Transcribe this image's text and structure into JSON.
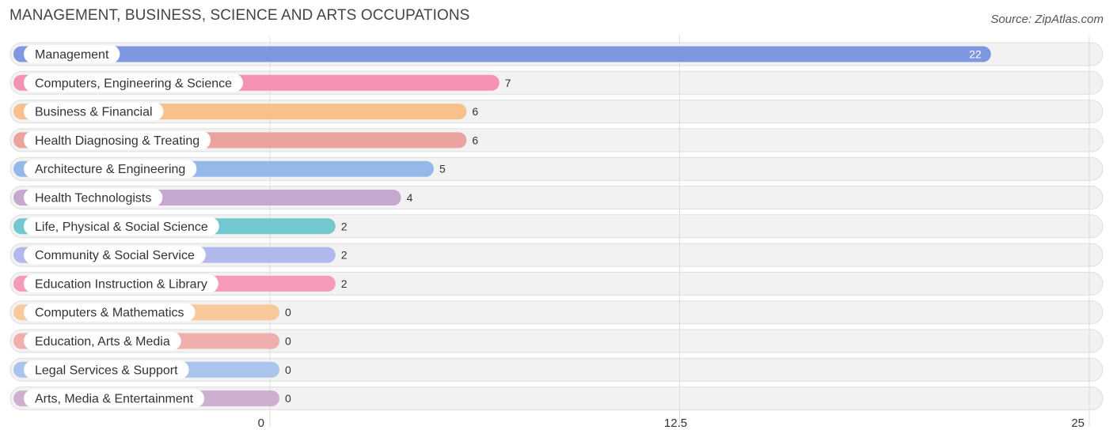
{
  "header": {
    "title": "MANAGEMENT, BUSINESS, SCIENCE AND ARTS OCCUPATIONS",
    "source": "Source: ZipAtlas.com"
  },
  "chart_data": {
    "type": "bar",
    "orientation": "horizontal",
    "title": "MANAGEMENT, BUSINESS, SCIENCE AND ARTS OCCUPATIONS",
    "xlabel": "",
    "ylabel": "",
    "xlim": [
      0,
      25
    ],
    "ticks": [
      {
        "value": 0,
        "label": "0"
      },
      {
        "value": 12.5,
        "label": "12.5"
      },
      {
        "value": 25,
        "label": "25"
      }
    ],
    "grid": true,
    "categories": [
      "Management",
      "Computers, Engineering & Science",
      "Business & Financial",
      "Health Diagnosing & Treating",
      "Architecture & Engineering",
      "Health Technologists",
      "Life, Physical & Social Science",
      "Community & Social Service",
      "Education Instruction & Library",
      "Computers & Mathematics",
      "Education, Arts & Media",
      "Legal Services & Support",
      "Arts, Media & Entertainment"
    ],
    "values": [
      22,
      7,
      6,
      6,
      5,
      4,
      2,
      2,
      2,
      0,
      0,
      0,
      0
    ],
    "value_labels": [
      "22",
      "7",
      "6",
      "6",
      "5",
      "4",
      "2",
      "2",
      "2",
      "0",
      "0",
      "0",
      "0"
    ],
    "colors": [
      "#7f97e0",
      "#f492b2",
      "#f9c08c",
      "#eba3a0",
      "#94b9e8",
      "#c5a8cd",
      "#73c8cf",
      "#b1b8ec",
      "#f59ab8",
      "#f9c99c",
      "#f0aeac",
      "#a9c5ee",
      "#cdb0cf"
    ]
  }
}
